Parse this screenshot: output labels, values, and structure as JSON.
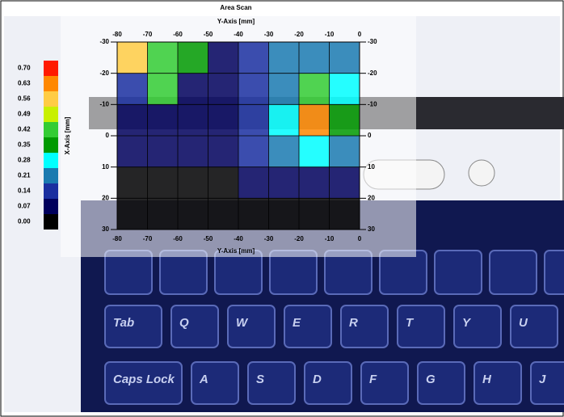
{
  "chart_data": {
    "type": "heatmap",
    "title": "Area Scan",
    "xlabel": "Y-Axis [mm]",
    "ylabel": "X-Axis [mm]",
    "x": [
      -75,
      -65,
      -55,
      -45,
      -35,
      -25,
      -15,
      -5
    ],
    "y": [
      -25,
      -15,
      -5,
      5,
      15,
      25
    ],
    "values": [
      [
        0.56,
        0.42,
        0.35,
        0.1,
        0.14,
        0.21,
        0.24,
        0.21
      ],
      [
        0.14,
        0.42,
        0.1,
        0.1,
        0.14,
        0.24,
        0.42,
        0.3
      ],
      [
        0.07,
        0.07,
        0.07,
        0.07,
        0.14,
        0.28,
        0.63,
        0.35
      ],
      [
        0.07,
        0.07,
        0.07,
        0.07,
        0.14,
        0.21,
        0.28,
        0.21
      ],
      [
        0.03,
        0.03,
        0.03,
        0.03,
        0.07,
        0.07,
        0.07,
        0.07
      ],
      [
        0.03,
        0.03,
        0.03,
        0.03,
        0.03,
        0.03,
        0.03,
        0.03
      ]
    ],
    "xlim": [
      -80,
      0
    ],
    "xticks": [
      -80,
      -70,
      -60,
      -50,
      -40,
      -30,
      -20,
      -10,
      0
    ],
    "ylim": [
      -30,
      30
    ],
    "yticks": [
      -30,
      -20,
      -10,
      0,
      10,
      20,
      30
    ],
    "grid": true,
    "colorbar": {
      "ticks": [
        {
          "value": 0,
          "label": "0.00"
        },
        0.07,
        0.14,
        0.21,
        0.28,
        0.35,
        0.42,
        0.49,
        0.56,
        0.63,
        {
          "value": 0.7,
          "label": "0.70"
        }
      ],
      "colors": [
        "#000000",
        "#00005c",
        "#1a2fa0",
        "#1a7ab0",
        "#00ffff",
        "#009a00",
        "#33cc33",
        "#c8f000",
        "#ffcc44",
        "#ff8800",
        "#ff1a00"
      ]
    }
  },
  "photo": {
    "keys": [
      [
        "Tab",
        "Q",
        "W",
        "E",
        "R",
        "T",
        "Y",
        "U"
      ],
      [
        "Caps Lock",
        "A",
        "S",
        "D",
        "F",
        "G",
        "H",
        "J"
      ]
    ]
  }
}
